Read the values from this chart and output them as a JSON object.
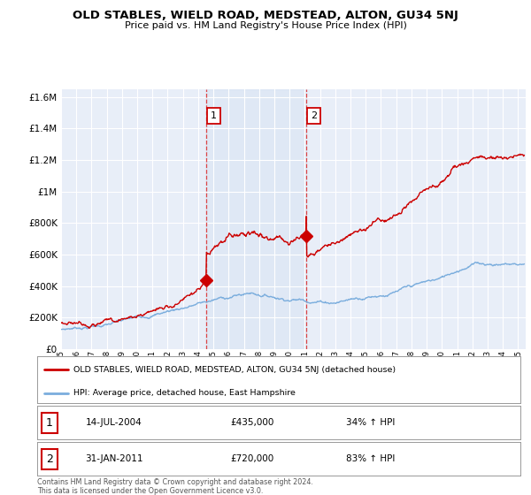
{
  "title": "OLD STABLES, WIELD ROAD, MEDSTEAD, ALTON, GU34 5NJ",
  "subtitle": "Price paid vs. HM Land Registry's House Price Index (HPI)",
  "ylabel_values": [
    0,
    200000,
    400000,
    600000,
    800000,
    1000000,
    1200000,
    1400000,
    1600000
  ],
  "ylim": [
    0,
    1650000
  ],
  "xlim_start": 1995.0,
  "xlim_end": 2025.5,
  "background_color": "#ffffff",
  "plot_bg_color": "#e8eef8",
  "grid_color": "#ffffff",
  "red_line_color": "#cc0000",
  "blue_line_color": "#7aaddd",
  "marker1_x": 2004.54,
  "marker1_y": 435000,
  "marker1_label": "1",
  "marker1_date": "14-JUL-2004",
  "marker1_price": "£435,000",
  "marker1_hpi": "34% ↑ HPI",
  "marker2_x": 2011.08,
  "marker2_y": 720000,
  "marker2_label": "2",
  "marker2_date": "31-JAN-2011",
  "marker2_price": "£720,000",
  "marker2_hpi": "83% ↑ HPI",
  "vline_color": "#dd3333",
  "legend_red_label": "OLD STABLES, WIELD ROAD, MEDSTEAD, ALTON, GU34 5NJ (detached house)",
  "legend_blue_label": "HPI: Average price, detached house, East Hampshire",
  "footer_text": "Contains HM Land Registry data © Crown copyright and database right 2024.\nThis data is licensed under the Open Government Licence v3.0.",
  "xtick_years": [
    1995,
    1996,
    1997,
    1998,
    1999,
    2000,
    2001,
    2002,
    2003,
    2004,
    2005,
    2006,
    2007,
    2008,
    2009,
    2010,
    2011,
    2012,
    2013,
    2014,
    2015,
    2016,
    2017,
    2018,
    2019,
    2020,
    2021,
    2022,
    2023,
    2024,
    2025
  ]
}
